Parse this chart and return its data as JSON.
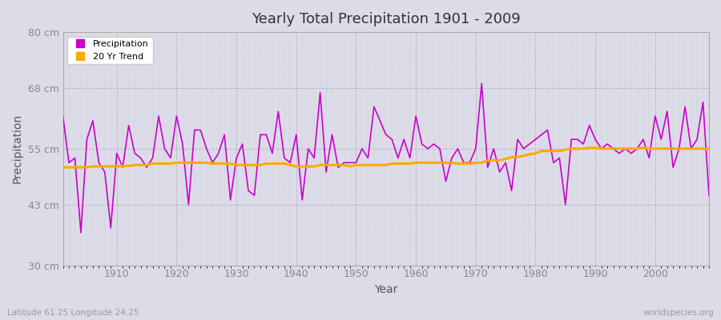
{
  "title": "Yearly Total Precipitation 1901 - 2009",
  "xlabel": "Year",
  "ylabel": "Precipitation",
  "footnote_left": "Latitude 61.25 Longitude 24.25",
  "footnote_right": "worldspecies.org",
  "ylim": [
    30,
    80
  ],
  "xlim": [
    1901,
    2009
  ],
  "yticks": [
    30,
    43,
    55,
    68,
    80
  ],
  "ytick_labels": [
    "30 cm",
    "43 cm",
    "55 cm",
    "68 cm",
    "80 cm"
  ],
  "xticks": [
    1910,
    1920,
    1930,
    1940,
    1950,
    1960,
    1970,
    1980,
    1990,
    2000
  ],
  "bg_color": "#dcdce8",
  "fig_color": "#dcdce8",
  "line_color_precip": "#cc00cc",
  "line_color_trend": "#ffaa00",
  "years": [
    1901,
    1902,
    1903,
    1904,
    1905,
    1906,
    1907,
    1908,
    1909,
    1910,
    1911,
    1912,
    1913,
    1914,
    1915,
    1916,
    1917,
    1918,
    1919,
    1920,
    1921,
    1922,
    1923,
    1924,
    1925,
    1926,
    1927,
    1928,
    1929,
    1930,
    1931,
    1932,
    1933,
    1934,
    1935,
    1936,
    1937,
    1938,
    1939,
    1940,
    1941,
    1942,
    1943,
    1944,
    1945,
    1946,
    1947,
    1948,
    1949,
    1950,
    1951,
    1952,
    1953,
    1954,
    1955,
    1956,
    1957,
    1958,
    1959,
    1960,
    1961,
    1962,
    1963,
    1964,
    1965,
    1966,
    1967,
    1968,
    1969,
    1970,
    1971,
    1972,
    1973,
    1974,
    1975,
    1976,
    1977,
    1978,
    1979,
    1980,
    1981,
    1982,
    1983,
    1984,
    1985,
    1986,
    1987,
    1988,
    1989,
    1990,
    1991,
    1992,
    1993,
    1994,
    1995,
    1996,
    1997,
    1998,
    1999,
    2000,
    2001,
    2002,
    2003,
    2004,
    2005,
    2006,
    2007,
    2008,
    2009
  ],
  "precip": [
    62,
    52,
    53,
    37,
    57,
    61,
    52,
    50,
    38,
    54,
    51,
    60,
    54,
    53,
    51,
    53,
    62,
    55,
    53,
    62,
    56,
    43,
    59,
    59,
    55,
    52,
    54,
    58,
    44,
    53,
    56,
    46,
    45,
    58,
    58,
    54,
    63,
    53,
    52,
    58,
    44,
    55,
    53,
    67,
    50,
    58,
    51,
    52,
    52,
    52,
    55,
    53,
    64,
    61,
    58,
    57,
    53,
    57,
    53,
    62,
    56,
    55,
    56,
    55,
    48,
    53,
    55,
    52,
    52,
    55,
    69,
    51,
    55,
    50,
    52,
    46,
    57,
    55,
    56,
    57,
    58,
    59,
    52,
    53,
    43,
    57,
    57,
    56,
    60,
    57,
    55,
    56,
    55,
    54,
    55,
    54,
    55,
    57,
    53,
    62,
    57,
    63,
    51,
    55,
    64,
    55,
    57,
    65,
    45
  ],
  "trend": [
    51.0,
    51.0,
    51.0,
    51.0,
    51.0,
    51.2,
    51.2,
    51.2,
    51.2,
    51.2,
    51.3,
    51.3,
    51.5,
    51.5,
    51.5,
    51.8,
    51.8,
    51.8,
    51.8,
    52.0,
    52.0,
    52.0,
    52.0,
    52.0,
    52.0,
    51.8,
    51.8,
    51.8,
    51.8,
    51.5,
    51.5,
    51.5,
    51.5,
    51.5,
    51.8,
    51.8,
    51.8,
    51.8,
    51.5,
    51.2,
    51.2,
    51.2,
    51.2,
    51.5,
    51.5,
    51.5,
    51.5,
    51.5,
    51.2,
    51.5,
    51.5,
    51.5,
    51.5,
    51.5,
    51.5,
    51.8,
    51.8,
    51.8,
    51.8,
    52.0,
    52.0,
    52.0,
    52.0,
    52.0,
    52.0,
    52.0,
    51.8,
    51.8,
    51.8,
    52.0,
    52.0,
    52.5,
    52.5,
    52.5,
    52.8,
    53.2,
    53.2,
    53.5,
    53.8,
    54.0,
    54.5,
    54.5,
    54.5,
    54.5,
    54.8,
    55.0,
    55.0,
    55.0,
    55.2,
    55.2,
    55.0,
    55.0,
    55.0,
    55.0,
    55.0,
    55.0,
    55.0,
    55.2,
    55.0,
    55.0,
    55.0,
    55.0,
    55.0,
    55.0,
    55.0,
    55.0,
    55.0,
    55.0,
    55.0
  ]
}
